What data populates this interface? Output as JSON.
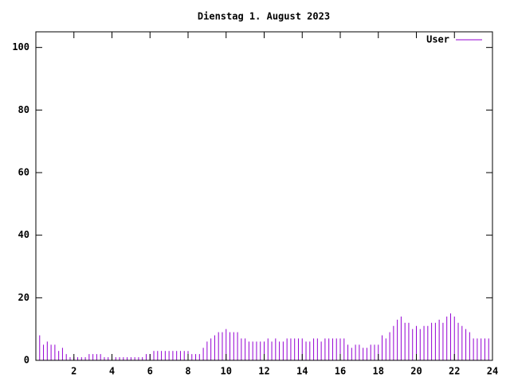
{
  "chart_data": {
    "type": "impulses",
    "title": "Dienstag 1. August 2023",
    "x": [
      0,
      0.2,
      0.4,
      0.6,
      0.8,
      1,
      1.2,
      1.4,
      1.6,
      1.8,
      2,
      2.2,
      2.4,
      2.6,
      2.8,
      3,
      3.2,
      3.4,
      3.6,
      3.8,
      4,
      4.2,
      4.4,
      4.6,
      4.8,
      5,
      5.2,
      5.4,
      5.6,
      5.8,
      6,
      6.2,
      6.4,
      6.6,
      6.8,
      7,
      7.2,
      7.4,
      7.6,
      7.8,
      8,
      8.2,
      8.4,
      8.6,
      8.8,
      9,
      9.2,
      9.4,
      9.6,
      9.8,
      10,
      10.2,
      10.4,
      10.6,
      10.8,
      11,
      11.2,
      11.4,
      11.6,
      11.8,
      12,
      12.2,
      12.4,
      12.6,
      12.8,
      13,
      13.2,
      13.4,
      13.6,
      13.8,
      14,
      14.2,
      14.4,
      14.6,
      14.8,
      15,
      15.2,
      15.4,
      15.6,
      15.8,
      16,
      16.2,
      16.4,
      16.6,
      16.8,
      17,
      17.2,
      17.4,
      17.6,
      17.8,
      18,
      18.2,
      18.4,
      18.6,
      18.8,
      19,
      19.2,
      19.4,
      19.6,
      19.8,
      20,
      20.2,
      20.4,
      20.6,
      20.8,
      21,
      21.2,
      21.4,
      21.6,
      21.8,
      22,
      22.2,
      22.4,
      22.6,
      22.8,
      23,
      23.2,
      23.4,
      23.6,
      23.8,
      24
    ],
    "series": [
      {
        "name": "User",
        "color": "#9400d3",
        "values": [
          6,
          8,
          5,
          6,
          5,
          5,
          3,
          4,
          2,
          1,
          1,
          1,
          1,
          1,
          2,
          2,
          2,
          2,
          1,
          1,
          1,
          1,
          1,
          1,
          1,
          1,
          1,
          1,
          1,
          2,
          2,
          3,
          3,
          3,
          3,
          3,
          3,
          3,
          3,
          3,
          3,
          2,
          2,
          2,
          4,
          6,
          7,
          8,
          9,
          9,
          10,
          9,
          9,
          9,
          7,
          7,
          6,
          6,
          6,
          6,
          6,
          7,
          6,
          7,
          6,
          6,
          7,
          7,
          7,
          7,
          7,
          6,
          6,
          7,
          7,
          6,
          7,
          7,
          7,
          7,
          7,
          7,
          5,
          4,
          5,
          5,
          4,
          4,
          5,
          5,
          5,
          8,
          7,
          9,
          11,
          13,
          14,
          12,
          12,
          10,
          11,
          10,
          11,
          11,
          12,
          12,
          13,
          12,
          14,
          15,
          14,
          12,
          11,
          10,
          9,
          7,
          7,
          7,
          7,
          7,
          7
        ]
      }
    ],
    "xlim": [
      0,
      24
    ],
    "xticks": [
      2,
      4,
      6,
      8,
      10,
      12,
      14,
      16,
      18,
      20,
      22,
      24
    ],
    "ylim": [
      0,
      105
    ],
    "yticks": [
      0,
      20,
      40,
      60,
      80,
      100
    ],
    "legend": "top-right"
  }
}
